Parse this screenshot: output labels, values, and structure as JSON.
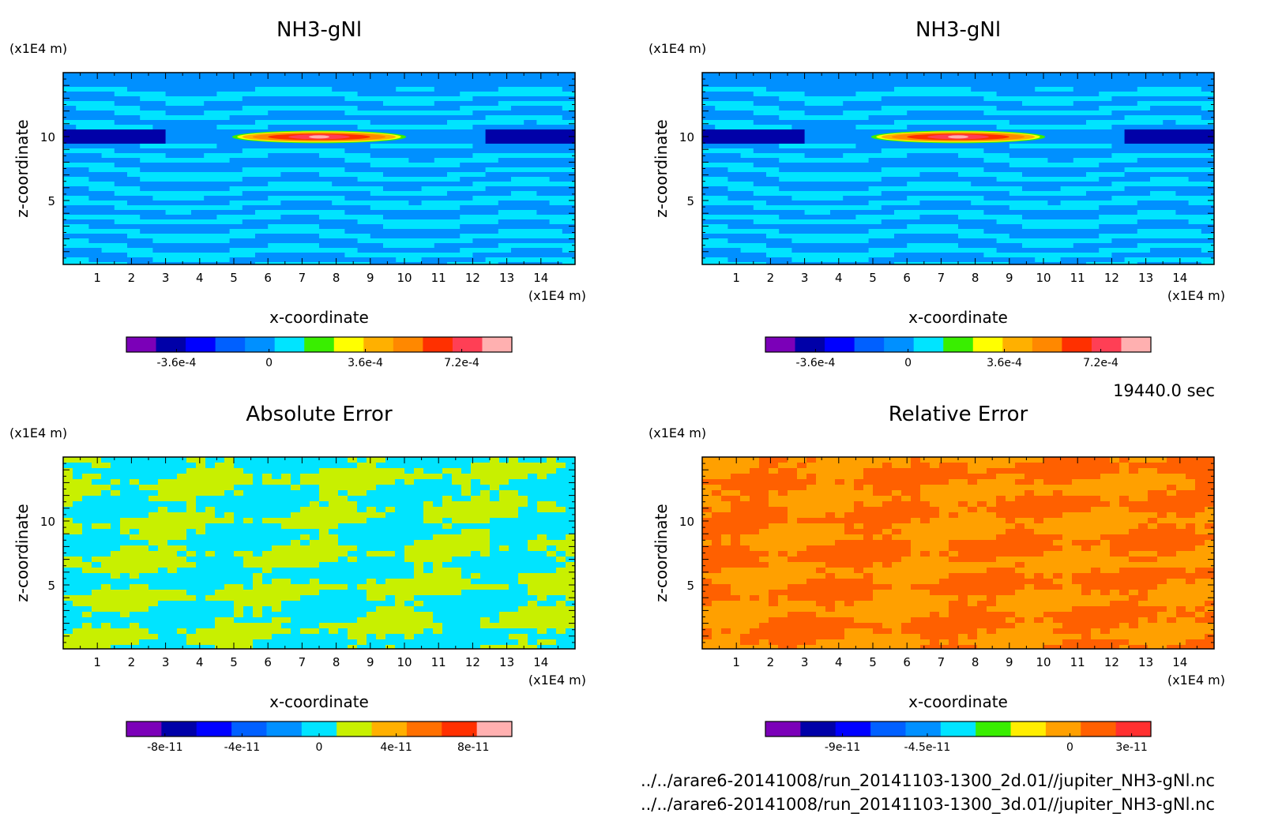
{
  "figure": {
    "time_label": "19440.0 sec",
    "file_lines": [
      "../../arare6-20141008/run_20141103-1300_2d.01//jupiter_NH3-gNl.nc",
      "../../arare6-20141008/run_20141103-1300_3d.01//jupiter_NH3-gNl.nc"
    ]
  },
  "chart_data": [
    {
      "type": "heatmap",
      "title": "NH3-gNl",
      "xlabel": "x-coordinate",
      "ylabel": "z-coordinate",
      "x_unit": "(x1E4 m)",
      "y_unit": "(x1E4 m)",
      "xlim": [
        0,
        15
      ],
      "ylim": [
        0,
        15
      ],
      "x_ticks": [
        "1",
        "2",
        "3",
        "4",
        "5",
        "6",
        "7",
        "8",
        "9",
        "10",
        "11",
        "12",
        "13",
        "14"
      ],
      "y_ticks": [
        "5",
        "10"
      ],
      "pattern": "field",
      "colorbar": {
        "colors": [
          "#7b00b8",
          "#0000a8",
          "#0000ff",
          "#0060ff",
          "#0090ff",
          "#00e4ff",
          "#39ee00",
          "#ffff00",
          "#ffb000",
          "#ff8800",
          "#ff3000",
          "#ff3f55",
          "#ffb0b0"
        ],
        "tick_labels": [
          "-3.6e-4",
          "0",
          "3.6e-4",
          "7.2e-4"
        ]
      }
    },
    {
      "type": "heatmap",
      "title": "NH3-gNl",
      "xlabel": "x-coordinate",
      "ylabel": "z-coordinate",
      "x_unit": "(x1E4 m)",
      "y_unit": "(x1E4 m)",
      "xlim": [
        0,
        15
      ],
      "ylim": [
        0,
        15
      ],
      "x_ticks": [
        "1",
        "2",
        "3",
        "4",
        "5",
        "6",
        "7",
        "8",
        "9",
        "10",
        "11",
        "12",
        "13",
        "14"
      ],
      "y_ticks": [
        "5",
        "10"
      ],
      "pattern": "field",
      "colorbar": {
        "colors": [
          "#7b00b8",
          "#0000a8",
          "#0000ff",
          "#0060ff",
          "#0090ff",
          "#00e4ff",
          "#39ee00",
          "#ffff00",
          "#ffb000",
          "#ff8800",
          "#ff3000",
          "#ff3f55",
          "#ffb0b0"
        ],
        "tick_labels": [
          "-3.6e-4",
          "0",
          "3.6e-4",
          "7.2e-4"
        ]
      }
    },
    {
      "type": "heatmap",
      "title": "Absolute Error",
      "xlabel": "x-coordinate",
      "ylabel": "z-coordinate",
      "x_unit": "(x1E4 m)",
      "y_unit": "(x1E4 m)",
      "xlim": [
        0,
        15
      ],
      "ylim": [
        0,
        15
      ],
      "x_ticks": [
        "1",
        "2",
        "3",
        "4",
        "5",
        "6",
        "7",
        "8",
        "9",
        "10",
        "11",
        "12",
        "13",
        "14"
      ],
      "y_ticks": [
        "5",
        "10"
      ],
      "pattern": "abs",
      "colorbar": {
        "colors": [
          "#7b00b8",
          "#0000a8",
          "#0000ff",
          "#0060ff",
          "#0090ff",
          "#00e4ff",
          "#c8f000",
          "#ffb000",
          "#ff7000",
          "#ff3000",
          "#ffb0b0"
        ],
        "tick_labels": [
          "-8e-11",
          "-4e-11",
          "0",
          "4e-11",
          "8e-11"
        ]
      }
    },
    {
      "type": "heatmap",
      "title": "Relative Error",
      "xlabel": "x-coordinate",
      "ylabel": "z-coordinate",
      "x_unit": "(x1E4 m)",
      "y_unit": "(x1E4 m)",
      "xlim": [
        0,
        15
      ],
      "ylim": [
        0,
        15
      ],
      "x_ticks": [
        "1",
        "2",
        "3",
        "4",
        "5",
        "6",
        "7",
        "8",
        "9",
        "10",
        "11",
        "12",
        "13",
        "14"
      ],
      "y_ticks": [
        "5",
        "10"
      ],
      "pattern": "rel",
      "colorbar": {
        "colors": [
          "#7b00b8",
          "#0000a8",
          "#0000ff",
          "#0060ff",
          "#0090ff",
          "#00e4ff",
          "#39ee00",
          "#ffee00",
          "#ffa000",
          "#ff6000",
          "#ff3030"
        ],
        "tick_labels": [
          "-9e-11",
          "-4.5e-11",
          "0",
          "3e-11"
        ]
      }
    }
  ]
}
